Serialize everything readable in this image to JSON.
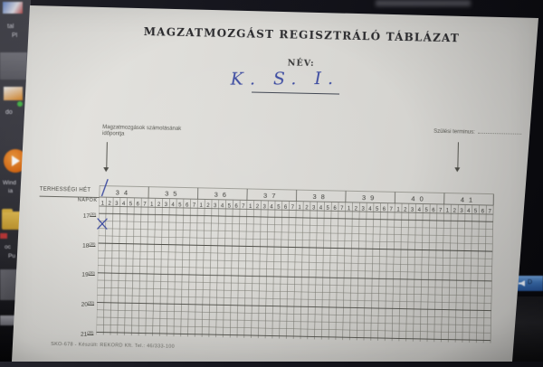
{
  "photo": {
    "paper_color": "#dddcd8",
    "background_color": "#14141b",
    "ink_blue": "#3b4aa0",
    "grid_line_color": "#7a7a72",
    "grid_hour_line_color": "#4c4c46"
  },
  "form": {
    "title": "MAGZATMOZGÁST REGISZTRÁLÓ TÁBLÁZAT",
    "name_label": "NÉV:",
    "name_value": "K. S. I.",
    "count_time_note_line1": "Magzatmozgások számolásának",
    "count_time_note_line2": "időpontja",
    "due_date_label": "Szülési terminus:",
    "footer": "SKO-678  -  Készült: REKORD Kft.  Tel.: 46/333-100"
  },
  "table": {
    "week_row_label": "TERHESSÉGI HÉT",
    "day_row_label": "NAPOK",
    "weeks": [
      "34",
      "35",
      "36",
      "37",
      "38",
      "39",
      "40",
      "41"
    ],
    "day_numbers": [
      "1",
      "2",
      "3",
      "4",
      "5",
      "6",
      "7"
    ],
    "time_labels": [
      {
        "hour": "17",
        "minutes": "(30)"
      },
      {
        "hour": "18",
        "minutes": "(30)"
      },
      {
        "hour": "19",
        "minutes": "(30)"
      },
      {
        "hour": "20",
        "minutes": "(30)"
      },
      {
        "hour": "21",
        "minutes": "(30)"
      }
    ],
    "rows_per_hour": 4,
    "body_rows": 17
  },
  "handwritten_marks": [
    {
      "type": "slash",
      "location": "week-34-header",
      "color": "#3b4aa0"
    },
    {
      "type": "x",
      "location": "week-34-day-1",
      "color": "#3b4aa0"
    }
  ],
  "desktop": {
    "icon_text_fragments": [
      "tal",
      "Pl",
      "do",
      "Wind",
      "ia",
      "oc",
      "Pu"
    ],
    "icons": [
      "media-player-icon",
      "folder-icon",
      "document-icon",
      "volume-icon"
    ]
  }
}
